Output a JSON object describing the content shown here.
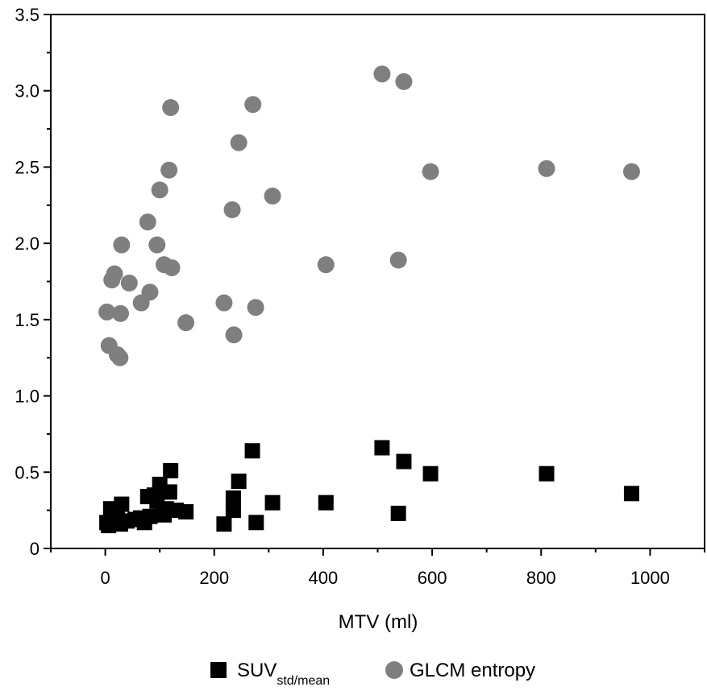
{
  "chart_data": {
    "type": "scatter",
    "xlabel": "MTV (ml)",
    "ylabel": "",
    "xlim": [
      -100,
      1100
    ],
    "ylim": [
      0,
      3.5
    ],
    "x_ticks": [
      0,
      200,
      400,
      600,
      800,
      1000
    ],
    "x_tick_labels": [
      "0",
      "200",
      "400",
      "600",
      "800",
      "1000"
    ],
    "y_ticks": [
      0,
      0.5,
      1.0,
      1.5,
      2.0,
      2.5,
      3.0,
      3.5
    ],
    "y_tick_labels": [
      "0",
      "0.5",
      "1.0",
      "1.5",
      "2.0",
      "2.5",
      "3.0",
      "3.5"
    ],
    "grid": false,
    "legend_position": "bottom",
    "series": [
      {
        "name": "SUV",
        "name_subscript": "std/mean",
        "marker": "square",
        "color": "#000000",
        "points": [
          [
            3,
            0.17
          ],
          [
            6,
            0.15
          ],
          [
            10,
            0.26
          ],
          [
            14,
            0.18
          ],
          [
            22,
            0.2
          ],
          [
            28,
            0.16
          ],
          [
            30,
            0.29
          ],
          [
            40,
            0.18
          ],
          [
            55,
            0.19
          ],
          [
            65,
            0.2
          ],
          [
            72,
            0.17
          ],
          [
            78,
            0.34
          ],
          [
            82,
            0.21
          ],
          [
            90,
            0.35
          ],
          [
            95,
            0.31
          ],
          [
            100,
            0.42
          ],
          [
            108,
            0.22
          ],
          [
            112,
            0.26
          ],
          [
            118,
            0.37
          ],
          [
            120,
            0.51
          ],
          [
            130,
            0.25
          ],
          [
            148,
            0.24
          ],
          [
            218,
            0.16
          ],
          [
            235,
            0.33
          ],
          [
            235,
            0.25
          ],
          [
            245,
            0.44
          ],
          [
            270,
            0.64
          ],
          [
            277,
            0.17
          ],
          [
            307,
            0.3
          ],
          [
            405,
            0.3
          ],
          [
            508,
            0.66
          ],
          [
            538,
            0.23
          ],
          [
            548,
            0.57
          ],
          [
            597,
            0.49
          ],
          [
            810,
            0.49
          ],
          [
            966,
            0.36
          ]
        ]
      },
      {
        "name": "GLCM entropy",
        "marker": "circle",
        "color": "#7f7f7f",
        "points": [
          [
            3,
            1.55
          ],
          [
            7,
            1.33
          ],
          [
            12,
            1.76
          ],
          [
            17,
            1.8
          ],
          [
            22,
            1.27
          ],
          [
            27,
            1.25
          ],
          [
            28,
            1.54
          ],
          [
            30,
            1.99
          ],
          [
            44,
            1.74
          ],
          [
            66,
            1.61
          ],
          [
            78,
            2.14
          ],
          [
            82,
            1.68
          ],
          [
            95,
            1.99
          ],
          [
            100,
            2.35
          ],
          [
            108,
            1.86
          ],
          [
            117,
            2.48
          ],
          [
            120,
            2.89
          ],
          [
            122,
            1.84
          ],
          [
            148,
            1.48
          ],
          [
            218,
            1.61
          ],
          [
            233,
            2.22
          ],
          [
            236,
            1.4
          ],
          [
            245,
            2.66
          ],
          [
            271,
            2.91
          ],
          [
            276,
            1.58
          ],
          [
            307,
            2.31
          ],
          [
            405,
            1.86
          ],
          [
            508,
            3.11
          ],
          [
            538,
            1.89
          ],
          [
            548,
            3.06
          ],
          [
            597,
            2.47
          ],
          [
            810,
            2.49
          ],
          [
            966,
            2.47
          ]
        ]
      }
    ]
  }
}
